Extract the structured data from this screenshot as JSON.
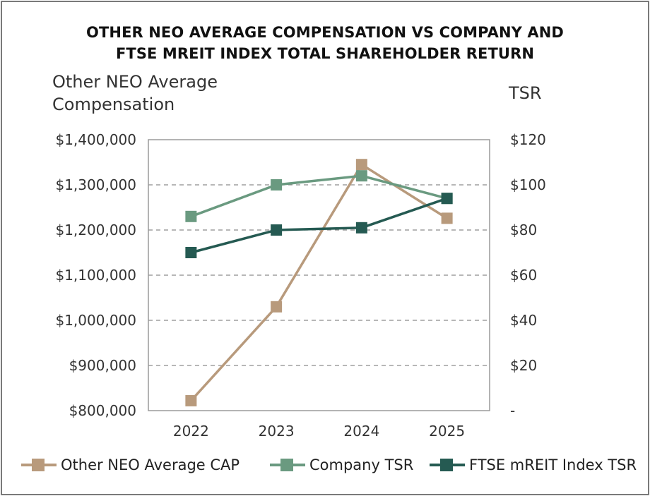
{
  "chart_data": {
    "type": "line",
    "title_line1": "OTHER NEO AVERAGE COMPENSATION VS COMPANY AND",
    "title_line2": "FTSE MREIT INDEX TOTAL SHAREHOLDER RETURN",
    "ylabel_left": "Other NEO Average Compensation",
    "ylabel_right": "TSR",
    "categories": [
      "2022",
      "2023",
      "2024",
      "2025"
    ],
    "y_left": {
      "min": 800000,
      "max": 1400000,
      "step": 100000,
      "tick_labels": [
        "$800,000",
        "$900,000",
        "$1,000,000",
        "$1,100,000",
        "$1,200,000",
        "$1,300,000",
        "$1,400,000"
      ]
    },
    "y_right": {
      "min": 0,
      "max": 120,
      "step": 20,
      "tick_labels": [
        "-",
        "$20",
        "$40",
        "$60",
        "$80",
        "$100",
        "$120"
      ]
    },
    "grid": "horizontal-dashed",
    "legend_position": "bottom",
    "series": [
      {
        "name": "Other NEO Average CAP",
        "axis": "left",
        "color": "#b89a7c",
        "values": [
          822000,
          1030000,
          1345000,
          1226000
        ]
      },
      {
        "name": "Company TSR",
        "axis": "right",
        "color": "#6a9a80",
        "values": [
          86,
          100,
          104,
          94
        ]
      },
      {
        "name": "FTSE mREIT Index TSR",
        "axis": "right",
        "color": "#255a52",
        "values": [
          70,
          80,
          81,
          94
        ]
      }
    ]
  }
}
